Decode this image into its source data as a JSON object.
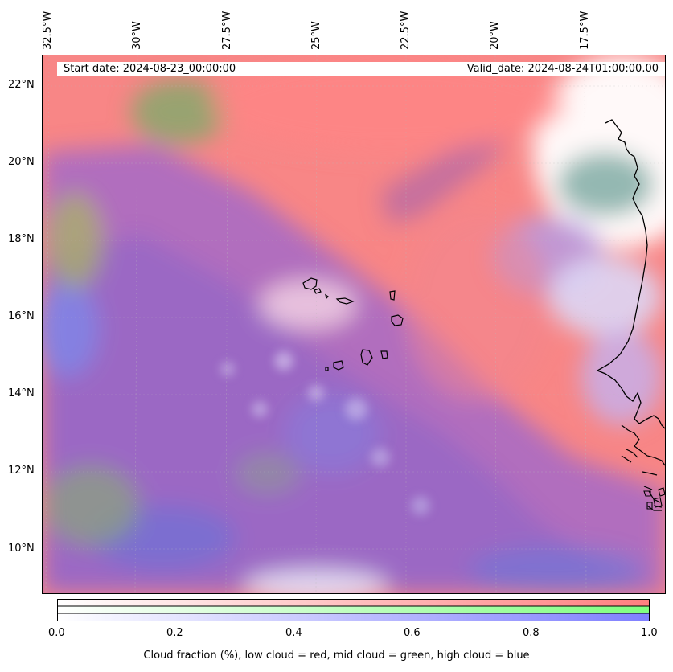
{
  "header": {
    "start_date": "Start date: 2024-08-23_00:00:00",
    "valid_date": "Valid_date: 2024-08-24T01:00:00.00"
  },
  "longitude_labels": [
    "32.5°W",
    "30°W",
    "27.5°W",
    "25°W",
    "22.5°W",
    "20°W",
    "17.5°W"
  ],
  "latitude_labels": [
    "22°N",
    "20°N",
    "18°N",
    "16°N",
    "14°N",
    "12°N",
    "10°N"
  ],
  "colorbar": {
    "ticks": [
      "0.0",
      "0.2",
      "0.4",
      "0.6",
      "0.8",
      "1.0"
    ],
    "title": "Cloud fraction (%), low cloud = red, mid cloud = green, high cloud = blue",
    "low_color": "#ff7f7f",
    "mid_color": "#7fff7f",
    "high_color": "#7f7fff"
  },
  "map": {
    "background_color": "#ff8a8a",
    "coastline_color": "#000000"
  }
}
